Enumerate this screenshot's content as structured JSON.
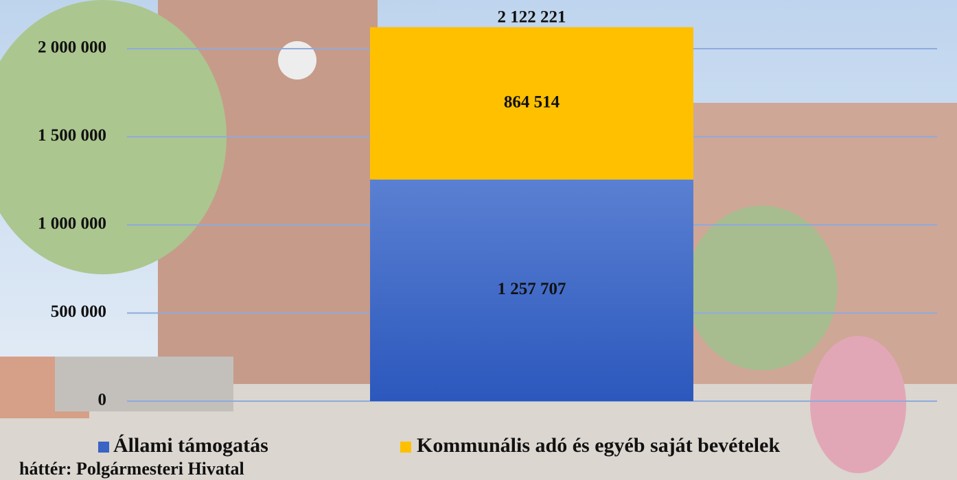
{
  "chart_data": {
    "type": "stacked_bar",
    "caption": "háttér: Polgármesteri Hivatal",
    "categories": [
      null
    ],
    "series": [
      {
        "name": "Állami támogatás",
        "color": "#3a64c4",
        "values": [
          1257707
        ],
        "value_labels": [
          "1 257 707"
        ]
      },
      {
        "name": "Kommunális adó és egyéb saját bevételek",
        "color": "#ffc000",
        "values": [
          864514
        ],
        "value_labels": [
          "864 514"
        ]
      }
    ],
    "total": 2122221,
    "total_label": "2 122 221",
    "ylim": [
      0,
      2200000
    ],
    "yticks": [
      0,
      {
        "value": 500000,
        "label": "500 000"
      },
      {
        "value": 1000000,
        "label": "1 000 000"
      },
      {
        "value": 1500000,
        "label": "1 500 000"
      },
      {
        "value": 2000000,
        "label": "2 000 000"
      }
    ],
    "grid": true,
    "legend": "bottom"
  }
}
